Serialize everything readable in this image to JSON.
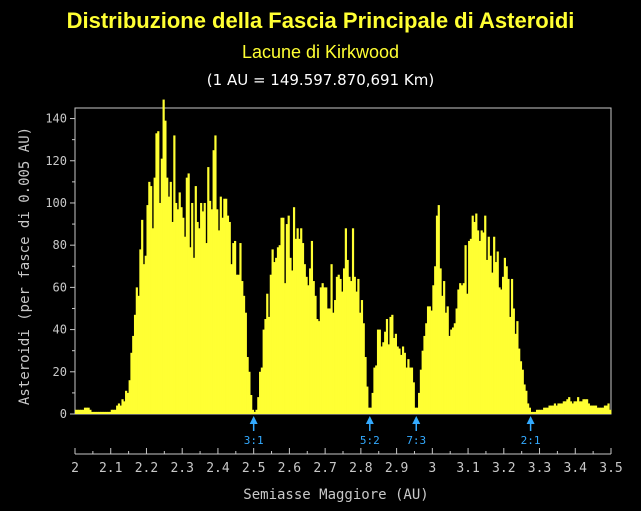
{
  "chart_data": {
    "type": "bar",
    "title": "Distribuzione della Fascia Principale di Asteroidi",
    "subtitle": "Lacune di Kirkwood",
    "note": "(1 AU = 149.597.870,691 Km)",
    "xlabel": "Semiasse Maggiore (AU)",
    "ylabel": "Asteroidi (per fasce di 0.005 AU)",
    "xlim": [
      2.0,
      3.5
    ],
    "ylim": [
      0,
      145
    ],
    "bin_width": 0.005,
    "x_ticks": [
      2.0,
      2.1,
      2.2,
      2.3,
      2.4,
      2.5,
      2.6,
      2.7,
      2.8,
      2.9,
      3.0,
      3.1,
      3.2,
      3.3,
      3.4,
      3.5
    ],
    "x_tick_labels": [
      "2",
      "2.1",
      "2.2",
      "2.3",
      "2.4",
      "2.5",
      "2.6",
      "2.7",
      "2.8",
      "2.9",
      "3",
      "3.1",
      "3.2",
      "3.3",
      "3.4",
      "3.5"
    ],
    "y_ticks": [
      0,
      20,
      40,
      60,
      80,
      100,
      120,
      140
    ],
    "grid": false,
    "bar_color": "#ffff33",
    "resonances": [
      {
        "label": "3:1",
        "x": 2.5
      },
      {
        "label": "5:2",
        "x": 2.825
      },
      {
        "label": "7:3",
        "x": 2.955
      },
      {
        "label": "2:1",
        "x": 3.275
      }
    ],
    "resonance_color": "#33aaff",
    "profile": [
      [
        2.0,
        2
      ],
      [
        2.02,
        2
      ],
      [
        2.035,
        3
      ],
      [
        2.05,
        1
      ],
      [
        2.1,
        1
      ],
      [
        2.13,
        5
      ],
      [
        2.15,
        12
      ],
      [
        2.165,
        45
      ],
      [
        2.18,
        72
      ],
      [
        2.2,
        85
      ],
      [
        2.215,
        105
      ],
      [
        2.23,
        120
      ],
      [
        2.245,
        125
      ],
      [
        2.26,
        110
      ],
      [
        2.28,
        112
      ],
      [
        2.3,
        92
      ],
      [
        2.32,
        95
      ],
      [
        2.34,
        88
      ],
      [
        2.36,
        100
      ],
      [
        2.38,
        110
      ],
      [
        2.4,
        108
      ],
      [
        2.42,
        92
      ],
      [
        2.44,
        84
      ],
      [
        2.46,
        72
      ],
      [
        2.475,
        48
      ],
      [
        2.485,
        22
      ],
      [
        2.495,
        5
      ],
      [
        2.5,
        0
      ],
      [
        2.51,
        4
      ],
      [
        2.525,
        30
      ],
      [
        2.54,
        55
      ],
      [
        2.56,
        72
      ],
      [
        2.58,
        78
      ],
      [
        2.6,
        80
      ],
      [
        2.62,
        80
      ],
      [
        2.64,
        78
      ],
      [
        2.66,
        72
      ],
      [
        2.68,
        55
      ],
      [
        2.7,
        65
      ],
      [
        2.72,
        58
      ],
      [
        2.74,
        68
      ],
      [
        2.76,
        75
      ],
      [
        2.78,
        72
      ],
      [
        2.8,
        58
      ],
      [
        2.81,
        42
      ],
      [
        2.818,
        10
      ],
      [
        2.825,
        0
      ],
      [
        2.832,
        8
      ],
      [
        2.845,
        32
      ],
      [
        2.86,
        40
      ],
      [
        2.88,
        40
      ],
      [
        2.9,
        38
      ],
      [
        2.92,
        28
      ],
      [
        2.935,
        22
      ],
      [
        2.945,
        20
      ],
      [
        2.95,
        8
      ],
      [
        2.955,
        0
      ],
      [
        2.96,
        5
      ],
      [
        2.975,
        30
      ],
      [
        2.99,
        48
      ],
      [
        3.0,
        52
      ],
      [
        3.01,
        75
      ],
      [
        3.02,
        95
      ],
      [
        3.028,
        60
      ],
      [
        3.04,
        42
      ],
      [
        3.06,
        52
      ],
      [
        3.08,
        62
      ],
      [
        3.1,
        70
      ],
      [
        3.12,
        82
      ],
      [
        3.14,
        88
      ],
      [
        3.16,
        80
      ],
      [
        3.18,
        70
      ],
      [
        3.2,
        62
      ],
      [
        3.22,
        55
      ],
      [
        3.24,
        38
      ],
      [
        3.255,
        20
      ],
      [
        3.265,
        8
      ],
      [
        3.275,
        1
      ],
      [
        3.3,
        2
      ],
      [
        3.32,
        3
      ],
      [
        3.35,
        5
      ],
      [
        3.38,
        7
      ],
      [
        3.4,
        6
      ],
      [
        3.42,
        7
      ],
      [
        3.44,
        5
      ],
      [
        3.46,
        3
      ],
      [
        3.48,
        3
      ],
      [
        3.49,
        5
      ],
      [
        3.5,
        2
      ]
    ]
  }
}
